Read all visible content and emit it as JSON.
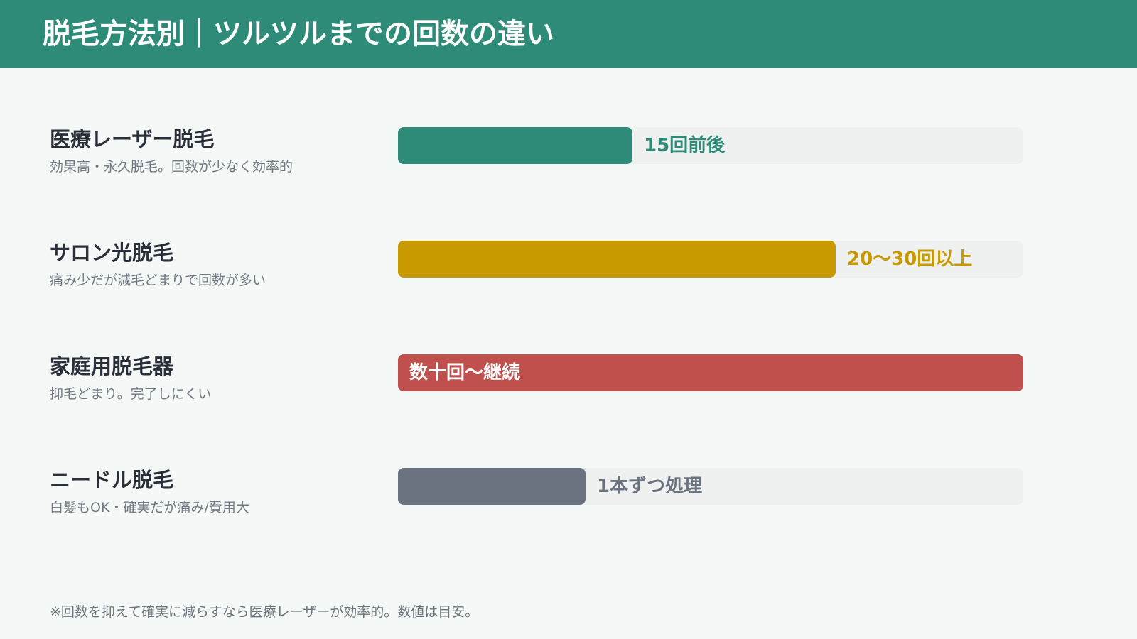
{
  "header": {
    "title": "脱毛方法別｜ツルツルまでの回数の違い"
  },
  "chart_data": {
    "type": "bar",
    "orientation": "horizontal",
    "scale": "relative",
    "categories": [
      "医療レーザー脱毛",
      "サロン光脱毛",
      "家庭用脱毛器",
      "ニードル脱毛"
    ],
    "descriptions": [
      "効果高・永久脱毛。回数が少なく効率的",
      "痛み少だが減毛どまりで回数が多い",
      "抑毛どまり。完了しにくい",
      "白髪もOK・確実だが痛み/費用大"
    ],
    "value_labels": [
      "15回前後",
      "20〜30回以上",
      "数十回〜継続",
      "1本ずつ処理"
    ],
    "values": [
      0.375,
      0.7,
      1.0,
      0.3
    ],
    "label_position": [
      "outside",
      "outside",
      "inside",
      "outside"
    ],
    "colors": [
      "#2e8b78",
      "#c99a00",
      "#c0504d",
      "#6b7280"
    ],
    "label_colors": [
      "#2e8b78",
      "#c99a00",
      "#ffffff",
      "#6b7280"
    ],
    "track_color": "#eef1f0",
    "grid": false,
    "legend": "none"
  },
  "footnote": "※回数を抑えて確実に減らすなら医療レーザーが効率的。数値は目安。"
}
